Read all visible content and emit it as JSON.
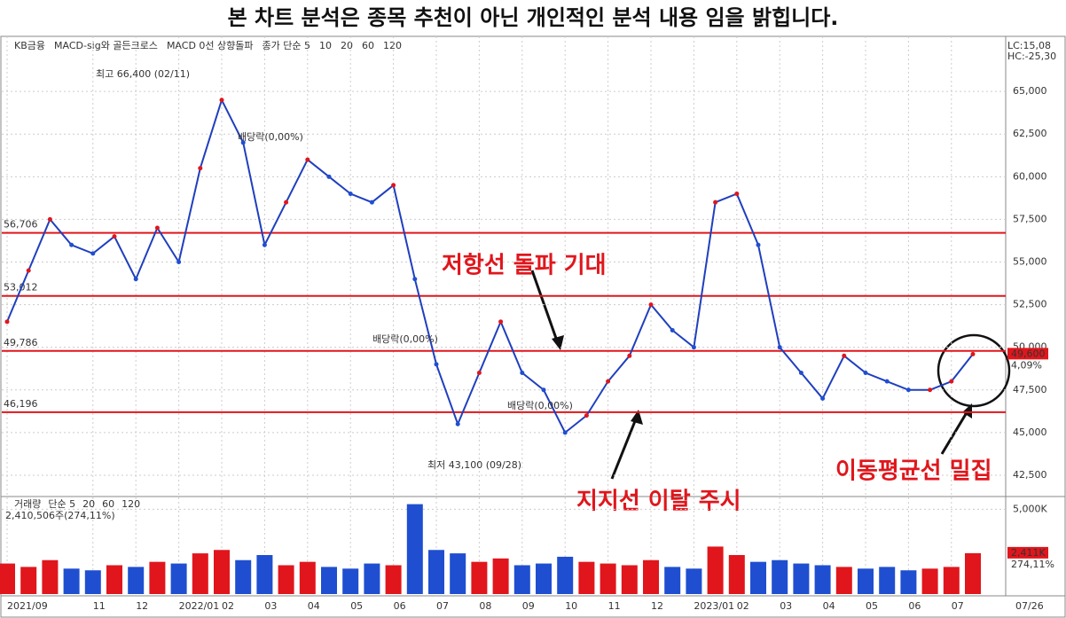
{
  "title": "본 차트 분석은 종목 추천이 아닌 개인적인 분석 내용 임을 밝힙니다.",
  "chart_data": [
    {
      "type": "line",
      "header": [
        "KB금융",
        "MACD-sig와 골든크로스",
        "MACD 0선 상향돌파",
        "종가 단순 5",
        "10",
        "20",
        "60",
        "120"
      ],
      "corner_labels": [
        "LC:15,08",
        "HC:-25,30"
      ],
      "categories": [
        "2021/09",
        null,
        null,
        null,
        "11",
        null,
        "12",
        null,
        "2022/01",
        null,
        "02",
        null,
        "03",
        null,
        "04",
        null,
        "05",
        null,
        "06",
        null,
        "07",
        null,
        "08",
        null,
        "09",
        null,
        "10",
        null,
        "11",
        null,
        "12",
        null,
        "2023/01",
        null,
        "02",
        null,
        "03",
        null,
        "04",
        null,
        "05",
        null,
        "06",
        null,
        "07",
        null
      ],
      "series": [
        {
          "name": "KB금융",
          "color": "#1f3fbf",
          "values": [
            51500,
            54500,
            57500,
            56000,
            55500,
            56500,
            54000,
            57000,
            55000,
            60500,
            64500,
            62000,
            56000,
            58500,
            61000,
            60000,
            59000,
            58500,
            59500,
            54000,
            49000,
            45500,
            48500,
            51500,
            48500,
            47500,
            45000,
            46000,
            48000,
            49500,
            52500,
            51000,
            50000,
            58500,
            59000,
            56000,
            50000,
            48500,
            47000,
            49500,
            48500,
            48000,
            47500,
            47500,
            48000,
            49600
          ]
        }
      ],
      "ylim": [
        41250,
        68230
      ],
      "yticks": [
        {
          "value": 42500,
          "label": "42,500"
        },
        {
          "value": 45000,
          "label": "45,000"
        },
        {
          "value": 47500,
          "label": "47,500"
        },
        {
          "value": 50000,
          "label": "50,000"
        },
        {
          "value": 52500,
          "label": "52,500"
        },
        {
          "value": 55000,
          "label": "55,000"
        },
        {
          "value": 57500,
          "label": "57,500"
        },
        {
          "value": 60000,
          "label": "60,000"
        },
        {
          "value": 62500,
          "label": "62,500"
        },
        {
          "value": 65000,
          "label": "65,000"
        }
      ],
      "grid": true,
      "levels": [
        {
          "value": 56706,
          "label": "56,706"
        },
        {
          "value": 53012,
          "label": "53,012"
        },
        {
          "value": 49786,
          "label": "49,786"
        },
        {
          "value": 46196,
          "label": "46,196"
        }
      ],
      "level_color": "#e0161c",
      "price_label": {
        "value": 49600,
        "label": "49,600"
      },
      "change_label": "4,09%",
      "annotations": [
        "최고 66,400 (02/11)",
        "최저 43,100 (09/28)",
        "배당락(0,00%)",
        "배당락(0,00%)",
        "배당락(0,00%)",
        "저항선 돌파 기대",
        "지지선 이탈 주시",
        "이동평균선 밀집"
      ],
      "last_date": "07/26"
    },
    {
      "type": "bar",
      "header": [
        "거래량",
        "단순 5",
        "20",
        "60",
        "120"
      ],
      "subheader": "2,410,506주(274,11%)",
      "up_color": "#e0161c",
      "down_color": "#1f4fd0",
      "values": [
        1800000,
        1600000,
        2000000,
        1500000,
        1400000,
        1700000,
        1600000,
        1900000,
        1800000,
        2400000,
        2600000,
        2000000,
        2300000,
        1700000,
        1900000,
        1600000,
        1500000,
        1800000,
        1700000,
        5300000,
        2600000,
        2400000,
        1900000,
        2100000,
        1700000,
        1800000,
        2200000,
        1900000,
        1800000,
        1700000,
        2000000,
        1600000,
        1500000,
        2800000,
        2300000,
        1900000,
        2000000,
        1800000,
        1700000,
        1600000,
        1500000,
        1600000,
        1400000,
        1500000,
        1600000,
        2410506
      ],
      "ylim": [
        0,
        5750000
      ],
      "yticks": [
        {
          "value": 5000000,
          "label": "5,000K"
        }
      ],
      "last_label": {
        "value": 2411000,
        "label": "2,411K"
      },
      "last_change_label": "274,11%"
    }
  ]
}
